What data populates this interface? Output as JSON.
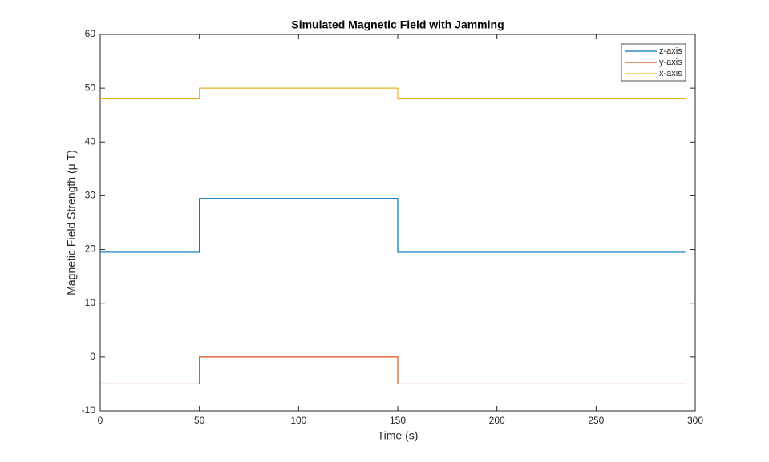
{
  "chart_data": {
    "type": "line",
    "title": "Simulated Magnetic Field with Jamming",
    "x_label": "Time (s)",
    "y_label": "Magnetic Field Strength (μ T)",
    "x": [
      0,
      50,
      50,
      150,
      150,
      295
    ],
    "series": [
      {
        "name": "z-axis",
        "color": "#0072BD",
        "values": [
          19.5,
          19.5,
          29.5,
          29.5,
          19.5,
          19.5
        ]
      },
      {
        "name": "y-axis",
        "color": "#D95319",
        "values": [
          -5,
          -5,
          0,
          0,
          -5,
          -5
        ]
      },
      {
        "name": "x-axis",
        "color": "#EDB120",
        "values": [
          48,
          48,
          50,
          50,
          48,
          48
        ]
      }
    ],
    "xlim": [
      0,
      300
    ],
    "xticks": [
      0,
      50,
      100,
      150,
      200,
      250,
      300
    ],
    "ylim": [
      -10,
      60
    ],
    "yticks": [
      -10,
      0,
      10,
      20,
      30,
      40,
      50,
      60
    ],
    "legend": "upper right",
    "grid": false
  }
}
